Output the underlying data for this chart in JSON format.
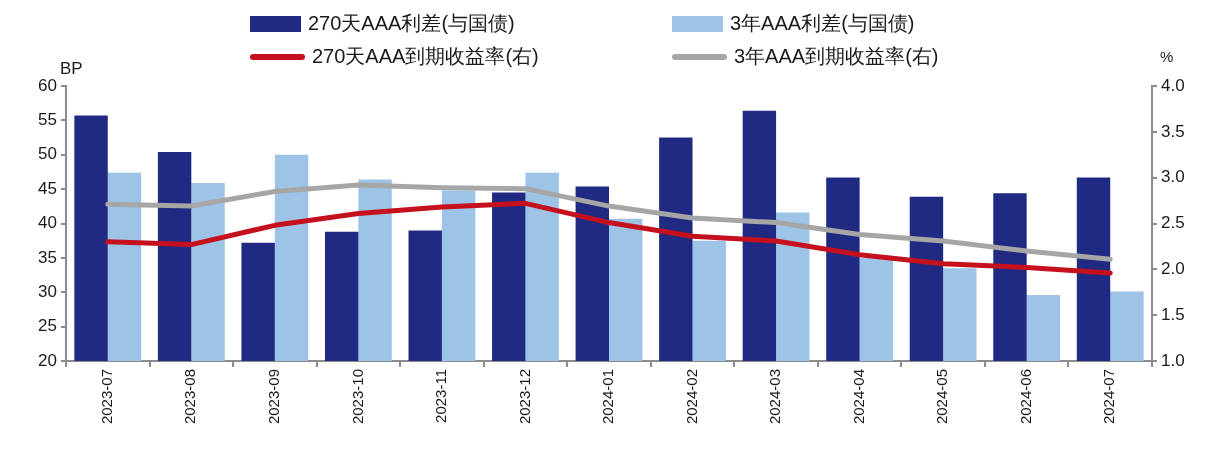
{
  "chart_data": {
    "type": "bar",
    "categories": [
      "2023-07",
      "2023-08",
      "2023-09",
      "2023-10",
      "2023-11",
      "2023-12",
      "2024-01",
      "2024-02",
      "2024-03",
      "2024-04",
      "2024-05",
      "2024-06",
      "2024-07"
    ],
    "ylabel": "BP",
    "y2label": "%",
    "series": [
      {
        "name": "270天AAA利差(与国债)",
        "color": "#212a82",
        "values": [
          55.7,
          50.4,
          37.2,
          38.8,
          39.0,
          44.5,
          45.4,
          52.5,
          56.4,
          46.7,
          43.9,
          44.4,
          46.7
        ]
      },
      {
        "name": "3年AAA利差(与国债)",
        "color": "#9dc3e6",
        "values": [
          47.4,
          45.9,
          50.0,
          46.4,
          44.8,
          47.4,
          40.7,
          37.5,
          41.6,
          35.0,
          33.5,
          29.6,
          30.1
        ]
      },
      {
        "name": "270天AAA到期收益率(右)",
        "type": "line",
        "axis": "y2",
        "color": "#c5101e",
        "values": [
          2.3,
          2.27,
          2.48,
          2.61,
          2.68,
          2.72,
          2.51,
          2.36,
          2.31,
          2.16,
          2.06,
          2.02,
          1.96
        ]
      },
      {
        "name": "3年AAA到期收益率(右)",
        "type": "line",
        "axis": "y2",
        "color": "#a6a6a6",
        "values": [
          2.71,
          2.69,
          2.85,
          2.92,
          2.89,
          2.88,
          2.69,
          2.56,
          2.51,
          2.38,
          2.31,
          2.2,
          2.11
        ]
      }
    ],
    "ylim": [
      20,
      60
    ],
    "yticks": [
      20,
      25,
      30,
      35,
      40,
      45,
      50,
      55,
      60
    ],
    "y2lim": [
      1,
      4
    ],
    "y2ticks": [
      {
        "value": 1,
        "label": "1.0"
      },
      1.5,
      {
        "value": 2,
        "label": "2.0"
      },
      2.5,
      {
        "value": 3,
        "label": "3.0"
      },
      3.5,
      {
        "value": 4,
        "label": "4.0"
      }
    ],
    "grid": false,
    "legend": "top"
  }
}
